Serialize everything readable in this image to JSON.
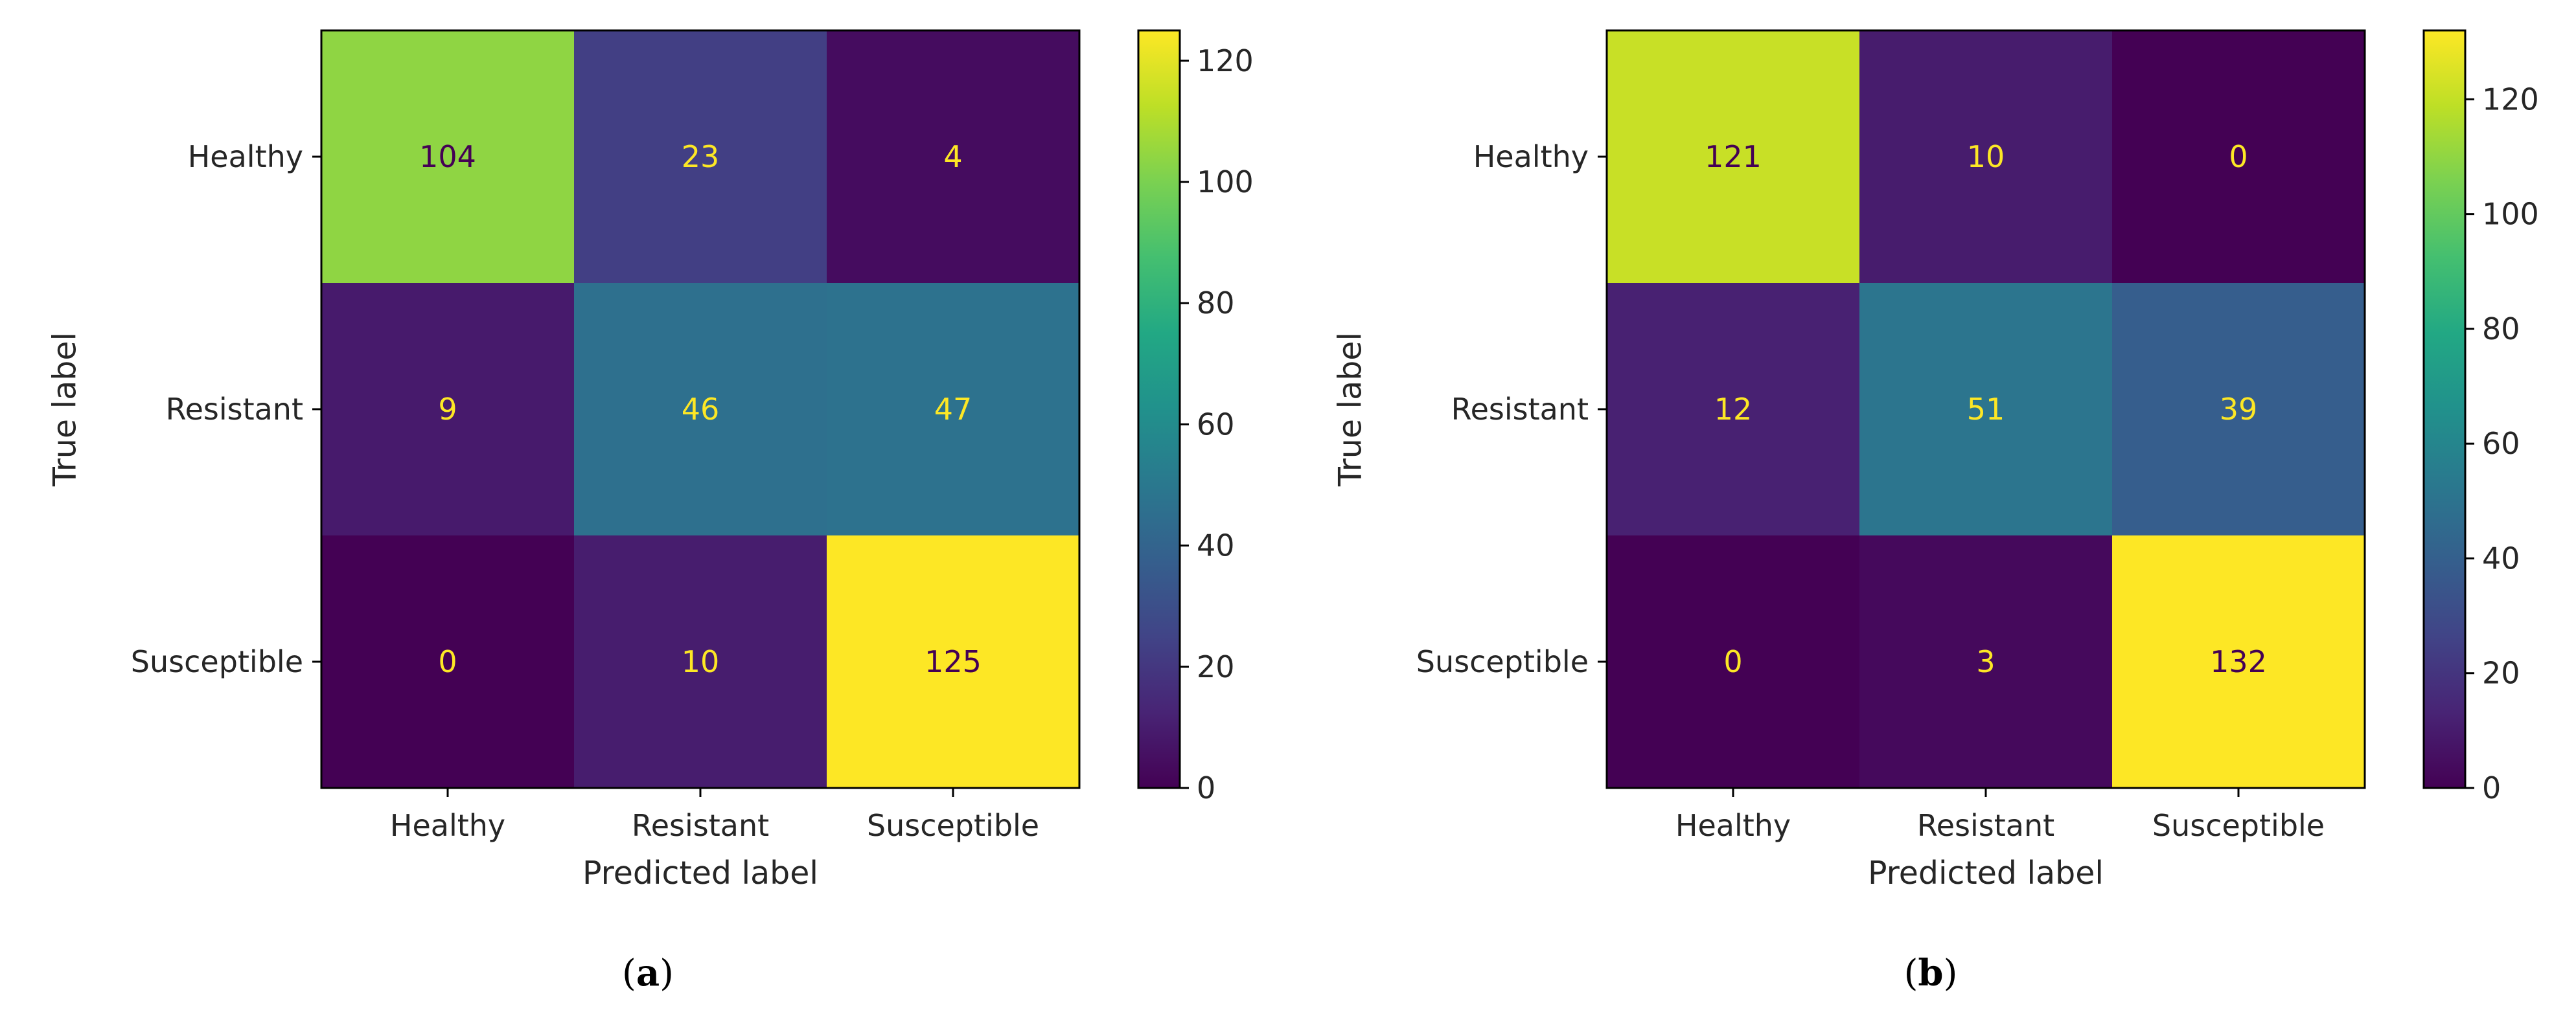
{
  "colors": {
    "viridis_low": "#440154",
    "viridis_high": "#fde725",
    "text_on_dark": "#fde725",
    "text_on_light": "#440154"
  },
  "chart_data": [
    {
      "type": "heatmap",
      "panel": "a",
      "caption_letter": "a",
      "caption_text": "(a)",
      "title": "",
      "xlabel": "Predicted label",
      "ylabel": "True label",
      "x_categories": [
        "Healthy",
        "Resistant",
        "Susceptible"
      ],
      "y_categories": [
        "Healthy",
        "Resistant",
        "Susceptible"
      ],
      "matrix": [
        [
          104,
          23,
          4
        ],
        [
          9,
          46,
          47
        ],
        [
          0,
          10,
          125
        ]
      ],
      "colorbar": {
        "vmin": 0,
        "vmax": 125,
        "ticks": [
          0,
          20,
          40,
          60,
          80,
          100,
          120
        ]
      },
      "colormap": "viridis"
    },
    {
      "type": "heatmap",
      "panel": "b",
      "caption_letter": "b",
      "caption_text": "(b)",
      "title": "",
      "xlabel": "Predicted label",
      "ylabel": "True label",
      "x_categories": [
        "Healthy",
        "Resistant",
        "Susceptible"
      ],
      "y_categories": [
        "Healthy",
        "Resistant",
        "Susceptible"
      ],
      "matrix": [
        [
          121,
          10,
          0
        ],
        [
          12,
          51,
          39
        ],
        [
          0,
          3,
          132
        ]
      ],
      "colorbar": {
        "vmin": 0,
        "vmax": 132,
        "ticks": [
          0,
          20,
          40,
          60,
          80,
          100,
          120
        ]
      },
      "colormap": "viridis"
    }
  ]
}
